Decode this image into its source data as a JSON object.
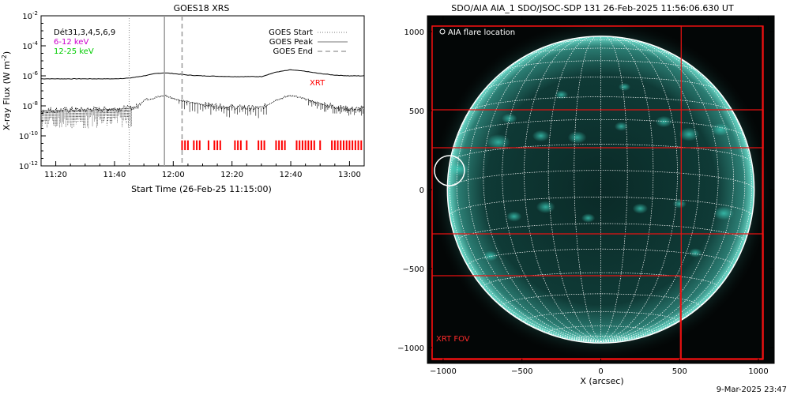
{
  "chart_data": [
    {
      "type": "line",
      "title": "GOES18 XRS",
      "xlabel": "Start Time (26-Feb-25 11:15:00)",
      "ylabel": "X-ray Flux (W m",
      "ylabel_sup": "-2",
      "ylabel_close": ")",
      "yscale": "log",
      "ylim_exp": [
        -12,
        -2
      ],
      "ytick_exps": [
        -12,
        -10,
        -8,
        -6,
        -4,
        -2
      ],
      "xlim_min": [
        15,
        125
      ],
      "xtick_min": [
        20,
        40,
        60,
        80,
        100,
        120
      ],
      "xtick_labels": [
        "11:20",
        "11:40",
        "12:00",
        "12:20",
        "12:40",
        "13:00"
      ],
      "top_labels": [
        {
          "text": "Dét31,3,4,5,6,9",
          "color": "#000000"
        },
        {
          "text": "6-12 keV",
          "color": "#cc00cc"
        },
        {
          "text": "12-25 keV",
          "color": "#00cc00"
        }
      ],
      "legend": [
        {
          "label": "GOES Start",
          "style": "dotted"
        },
        {
          "label": "GOES Peak",
          "style": "solid"
        },
        {
          "label": "GOES End",
          "style": "dashed"
        }
      ],
      "event_lines_min": {
        "start": 45,
        "peak": 57,
        "end": 63
      },
      "xrt_label": "XRT",
      "xrt_times_min": [
        63,
        64,
        65,
        67,
        68,
        69,
        72,
        74,
        75,
        76,
        81,
        82,
        83,
        85,
        89,
        90,
        91,
        95,
        96,
        97,
        98,
        102,
        103,
        104,
        105,
        106,
        107,
        108,
        110,
        114,
        115,
        116,
        117,
        118,
        119,
        120,
        121,
        122,
        123,
        124
      ],
      "series": [
        {
          "style": "solid",
          "x": [
            15,
            20,
            30,
            40,
            45,
            50,
            54,
            57,
            60,
            65,
            70,
            80,
            90,
            95,
            100,
            105,
            110,
            115,
            120,
            125
          ],
          "y_exp": [
            -6.2,
            -6.2,
            -6.2,
            -6.2,
            -6.15,
            -6.0,
            -5.85,
            -5.8,
            -5.85,
            -5.95,
            -6.0,
            -6.05,
            -6.05,
            -5.75,
            -5.6,
            -5.7,
            -5.85,
            -5.95,
            -6.0,
            -6.0
          ]
        },
        {
          "style": "dotted",
          "x": [
            15,
            20,
            30,
            40,
            45,
            48,
            50,
            54,
            57,
            60,
            65,
            70,
            80,
            90,
            95,
            100,
            105,
            110,
            115,
            120,
            125
          ],
          "y_exp": [
            -8.3,
            -8.3,
            -8.25,
            -8.2,
            -8.15,
            -8.05,
            -7.6,
            -7.45,
            -7.3,
            -7.5,
            -7.75,
            -7.9,
            -8.1,
            -8.15,
            -7.6,
            -7.3,
            -7.55,
            -7.85,
            -8.05,
            -8.2,
            -8.2
          ]
        }
      ]
    },
    {
      "type": "scatter",
      "title": "SDO/AIA AIA_1 SDO/JSOC-SDP 131 26-Feb-2025 11:56:06.630 UT",
      "xlabel": "X (arcsec)",
      "ylabel": "",
      "xlim": [
        -1100,
        1100
      ],
      "ylim": [
        -1100,
        1100
      ],
      "xticks": [
        -1000,
        -500,
        0,
        500,
        1000
      ],
      "yticks": [
        -1000,
        -500,
        0,
        500,
        1000
      ],
      "legend_text": "AIA flare location",
      "fov_label": "XRT FOV",
      "flare_location": [
        -960,
        120
      ],
      "solar_radius_arcsec": 973,
      "footer": "9-Mar-2025 23:47"
    }
  ]
}
